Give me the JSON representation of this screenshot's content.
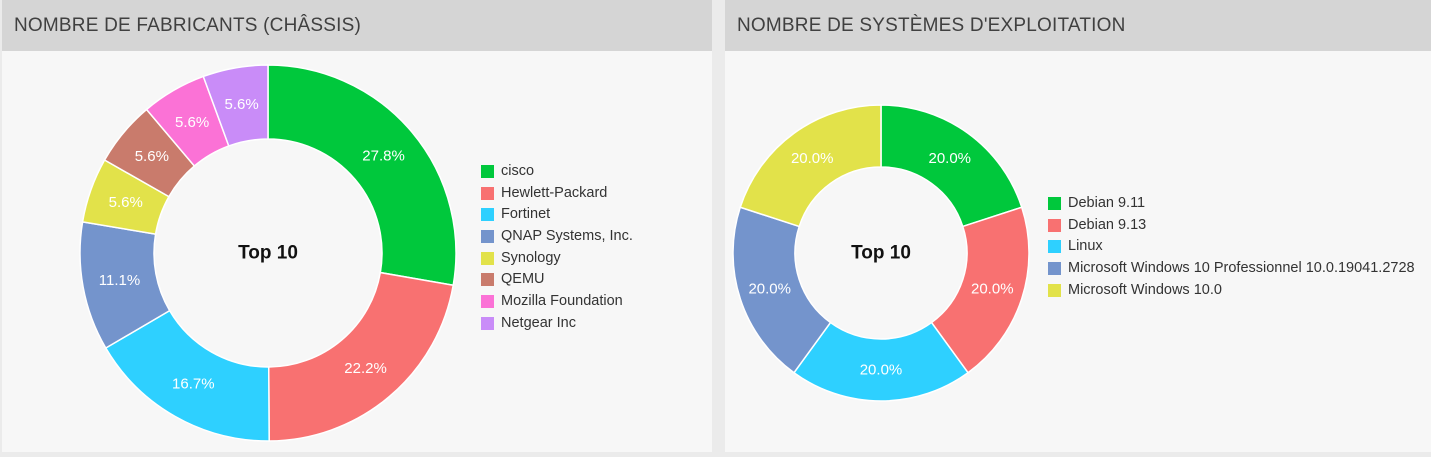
{
  "panels": [
    {
      "title": "NOMBRE DE FABRICANTS (CHÂSSIS)"
    },
    {
      "title": "NOMBRE DE SYSTÈMES D'EXPLOITATION"
    }
  ],
  "chart_data": [
    {
      "type": "pie",
      "style": "donut",
      "center_label": "Top 10",
      "legend_position": "right",
      "categories": [
        "cisco",
        "Hewlett-Packard",
        "Fortinet",
        "QNAP Systems, Inc.",
        "Synology",
        "QEMU",
        "Mozilla Foundation",
        "Netgear Inc"
      ],
      "values": [
        27.8,
        22.2,
        16.7,
        11.1,
        5.6,
        5.6,
        5.6,
        5.6
      ],
      "labels": [
        "27.8%",
        "22.2%",
        "16.7%",
        "11.1%",
        "5.6%",
        "5.6%",
        "5.6%",
        "5.6%"
      ],
      "colors": [
        "#00c83c",
        "#f87171",
        "#2ed0ff",
        "#7494cc",
        "#e2e24a",
        "#c97b6c",
        "#fb72d6",
        "#c98cf8"
      ]
    },
    {
      "type": "pie",
      "style": "donut",
      "center_label": "Top 10",
      "legend_position": "right",
      "categories": [
        "Debian 9.11",
        "Debian 9.13",
        "Linux",
        "Microsoft Windows 10 Professionnel 10.0.19041.2728",
        "Microsoft Windows 10.0"
      ],
      "values": [
        20.0,
        20.0,
        20.0,
        20.0,
        20.0
      ],
      "labels": [
        "20.0%",
        "20.0%",
        "20.0%",
        "20.0%",
        "20.0%"
      ],
      "colors": [
        "#00c83c",
        "#f87171",
        "#2ed0ff",
        "#7494cc",
        "#e2e24a"
      ]
    }
  ]
}
